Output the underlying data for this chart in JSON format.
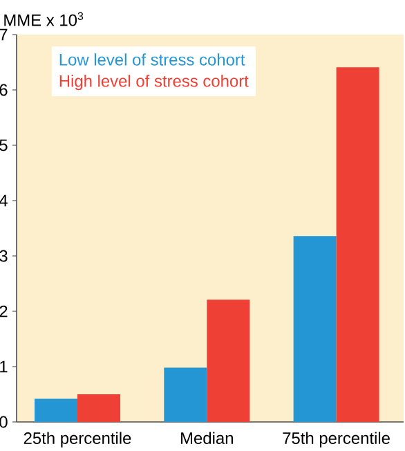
{
  "chart_data": {
    "type": "bar",
    "ylabel": "MME x 10$^{3}$",
    "categories": [
      "25th percentile",
      "Median",
      "75th percentile"
    ],
    "series": [
      {
        "name": "Low level of stress cohort",
        "color": "#2596d4",
        "values": [
          0.42,
          0.98,
          3.36
        ]
      },
      {
        "name": "High level of stress cohort",
        "color": "#ee4035",
        "values": [
          0.5,
          2.21,
          6.41
        ]
      }
    ],
    "ylim": [
      0,
      7
    ],
    "yticks": [
      0,
      1,
      2,
      3,
      4,
      5,
      6,
      7
    ],
    "legend": "top left",
    "grid": false
  }
}
